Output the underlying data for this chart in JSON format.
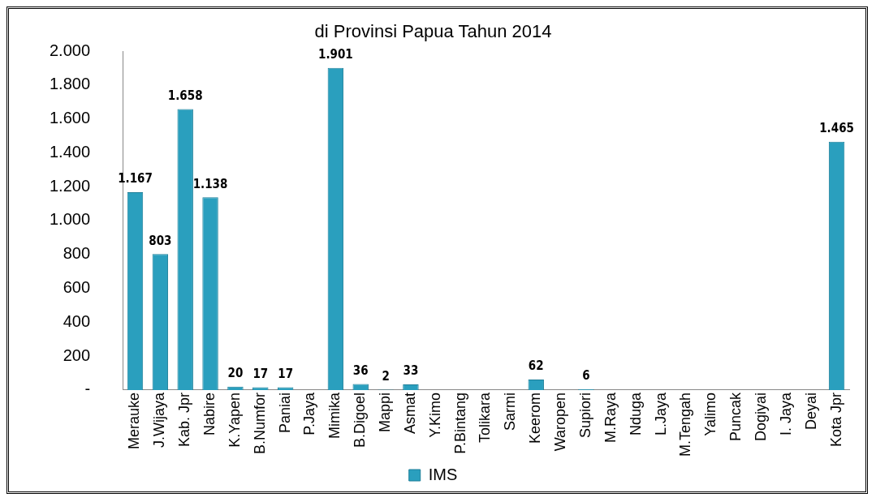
{
  "chart_data": {
    "type": "bar",
    "title": "di Provinsi Papua Tahun 2014",
    "categories": [
      "Merauke",
      "J.Wijaya",
      "Kab. Jpr",
      "Nabire",
      "K.Yapen",
      "B.Numfor",
      "Paniai",
      "P.Jaya",
      "Mimika",
      "B.Digoel",
      "Mappi",
      "Asmat",
      "Y.Kimo",
      "P.Bintang",
      "Tolikara",
      "Sarmi",
      "Keerom",
      "Waropen",
      "Supiori",
      "M.Raya",
      "Nduga",
      "L.Jaya",
      "M.Tengah",
      "Yalimo",
      "Puncak",
      "Dogiyai",
      "I. Jaya",
      "Deyai",
      "Kota Jpr"
    ],
    "series": [
      {
        "name": "IMS",
        "color": "#2a9fbe",
        "values": [
          1167,
          803,
          1658,
          1138,
          20,
          17,
          17,
          null,
          1901,
          36,
          2,
          33,
          null,
          null,
          null,
          null,
          62,
          null,
          6,
          null,
          null,
          null,
          null,
          null,
          null,
          null,
          null,
          null,
          1465
        ],
        "value_labels": [
          "1.167",
          "803",
          "1.658",
          "1.138",
          "20",
          "17",
          "17",
          null,
          "1.901",
          "36",
          "2",
          "33",
          null,
          null,
          null,
          null,
          "62",
          null,
          "6",
          null,
          null,
          null,
          null,
          null,
          null,
          null,
          null,
          null,
          "1.465"
        ]
      }
    ],
    "ylim": [
      0,
      2000
    ],
    "yticks": [
      {
        "value": 0,
        "label": "-"
      },
      200,
      400,
      600,
      800,
      {
        "value": 1000,
        "label": "1.000"
      },
      {
        "value": 1200,
        "label": "1.200"
      },
      {
        "value": 1400,
        "label": "1.400"
      },
      {
        "value": 1600,
        "label": "1.600"
      },
      {
        "value": 1800,
        "label": "1.800"
      },
      {
        "value": 2000,
        "label": "2.000"
      }
    ],
    "grid": false,
    "legend": "bottom"
  }
}
